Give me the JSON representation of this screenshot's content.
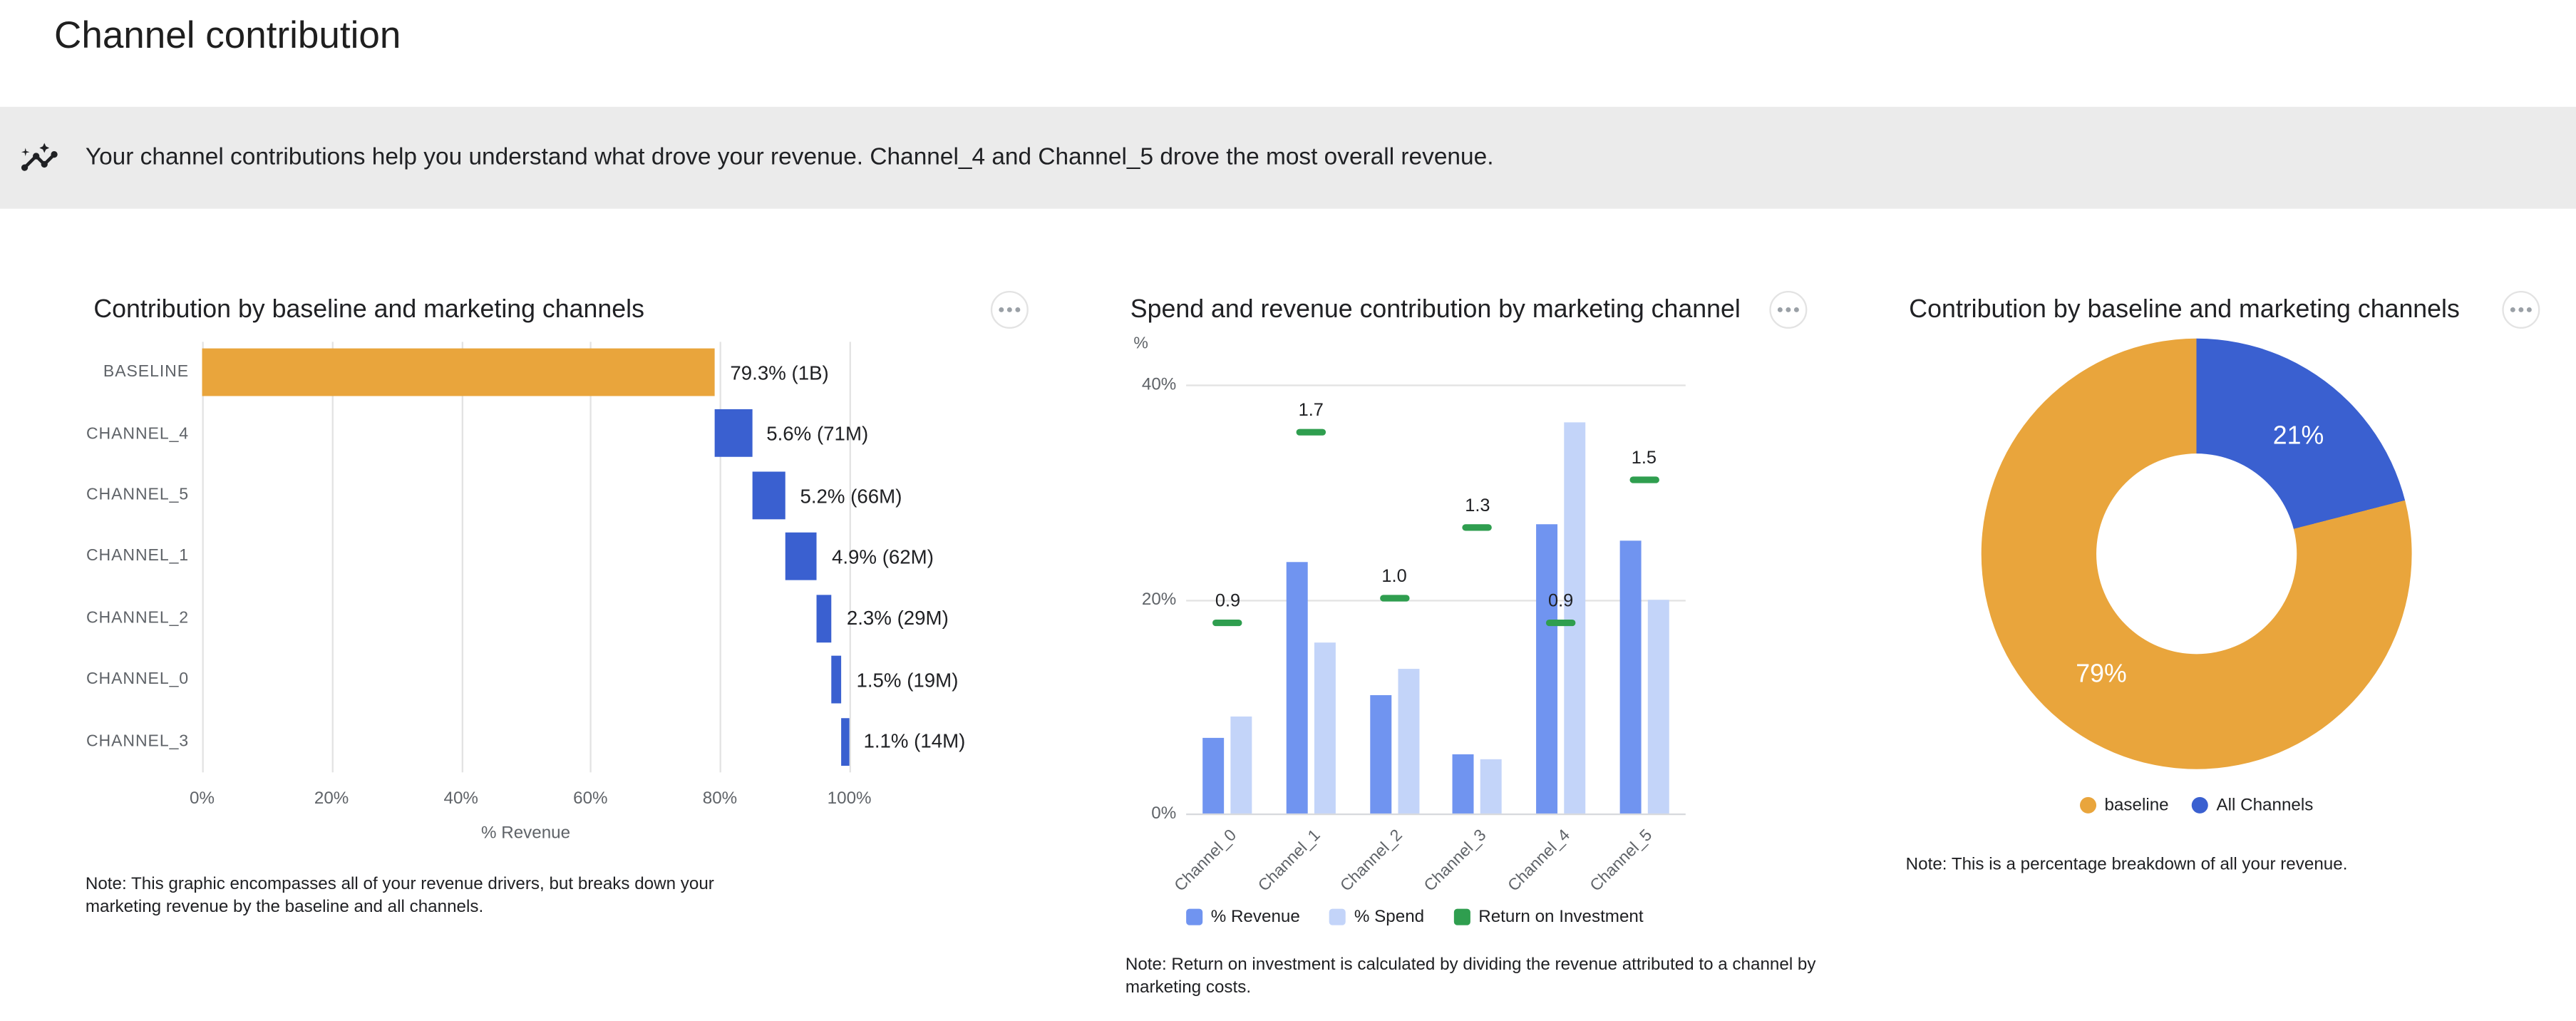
{
  "page": {
    "title": "Channel contribution"
  },
  "banner": {
    "icon": "insights-icon",
    "text": "Your channel contributions help you understand what drove your revenue. Channel_4 and Channel_5 drove the most overall revenue."
  },
  "colors": {
    "baseline_orange": "#E9A53C",
    "channel_blue": "#3A60D0",
    "revenue_blue": "#7094F0",
    "spend_blue": "#C3D4F9",
    "roi_green": "#2F9E4F",
    "banner_bg": "#EBEBEB",
    "text_primary": "#202124",
    "text_secondary": "#5F6368",
    "gridline": "#E3E3E3"
  },
  "chart_data": [
    {
      "type": "bar",
      "subtype": "horizontal-waterfall",
      "title": "Contribution by baseline and marketing channels",
      "categories": [
        "BASELINE",
        "CHANNEL_4",
        "CHANNEL_5",
        "CHANNEL_1",
        "CHANNEL_2",
        "CHANNEL_0",
        "CHANNEL_3"
      ],
      "values": [
        79.3,
        5.6,
        5.2,
        4.9,
        2.3,
        1.5,
        1.1
      ],
      "bar_labels": [
        "79.3% (1B)",
        "5.6% (71M)",
        "5.2% (66M)",
        "4.9% (62M)",
        "2.3% (29M)",
        "1.5% (19M)",
        "1.1% (14M)"
      ],
      "xlabel": "% Revenue",
      "xlim": [
        0,
        100
      ],
      "xticks": [
        0,
        20,
        40,
        60,
        80,
        100
      ],
      "xtick_labels": [
        "0%",
        "20%",
        "40%",
        "60%",
        "80%",
        "100%"
      ],
      "grid": true,
      "note": "Note: This graphic encompasses all of your revenue drivers, but breaks down your marketing revenue by the baseline and all channels."
    },
    {
      "type": "bar",
      "subtype": "grouped-vertical-with-roi-markers",
      "title": "Spend and revenue contribution by marketing channel",
      "categories": [
        "Channel_0",
        "Channel_1",
        "Channel_2",
        "Channel_3",
        "Channel_4",
        "Channel_5"
      ],
      "series": [
        {
          "name": "% Revenue",
          "values": [
            7,
            23.5,
            11,
            5.5,
            27,
            25.5
          ]
        },
        {
          "name": "% Spend",
          "values": [
            9,
            16,
            13.5,
            5,
            36.5,
            20
          ]
        },
        {
          "name": "Return on Investment",
          "values": [
            0.9,
            1.7,
            1.0,
            1.3,
            0.9,
            1.5
          ],
          "labels": [
            "0.9",
            "1.7",
            "1.0",
            "1.3",
            "0.9",
            "1.5"
          ]
        }
      ],
      "ylabel": "%",
      "ylim": [
        0,
        40
      ],
      "yticks": [
        0,
        20,
        40
      ],
      "ytick_labels": [
        "0%",
        "20%",
        "40%"
      ],
      "legend": [
        "% Revenue",
        "% Spend",
        "Return on Investment"
      ],
      "legend_position": "bottom",
      "grid": true,
      "note": "Note: Return on investment is calculated by dividing the revenue attributed to a channel by marketing costs."
    },
    {
      "type": "pie",
      "subtype": "donut",
      "title": "Contribution by baseline and marketing channels",
      "labels": [
        "baseline",
        "All Channels"
      ],
      "values": [
        79,
        21
      ],
      "slice_labels": [
        "79%",
        "21%"
      ],
      "legend": [
        "baseline",
        "All Channels"
      ],
      "legend_position": "bottom",
      "note": "Note: This is a percentage breakdown of all your revenue."
    }
  ]
}
